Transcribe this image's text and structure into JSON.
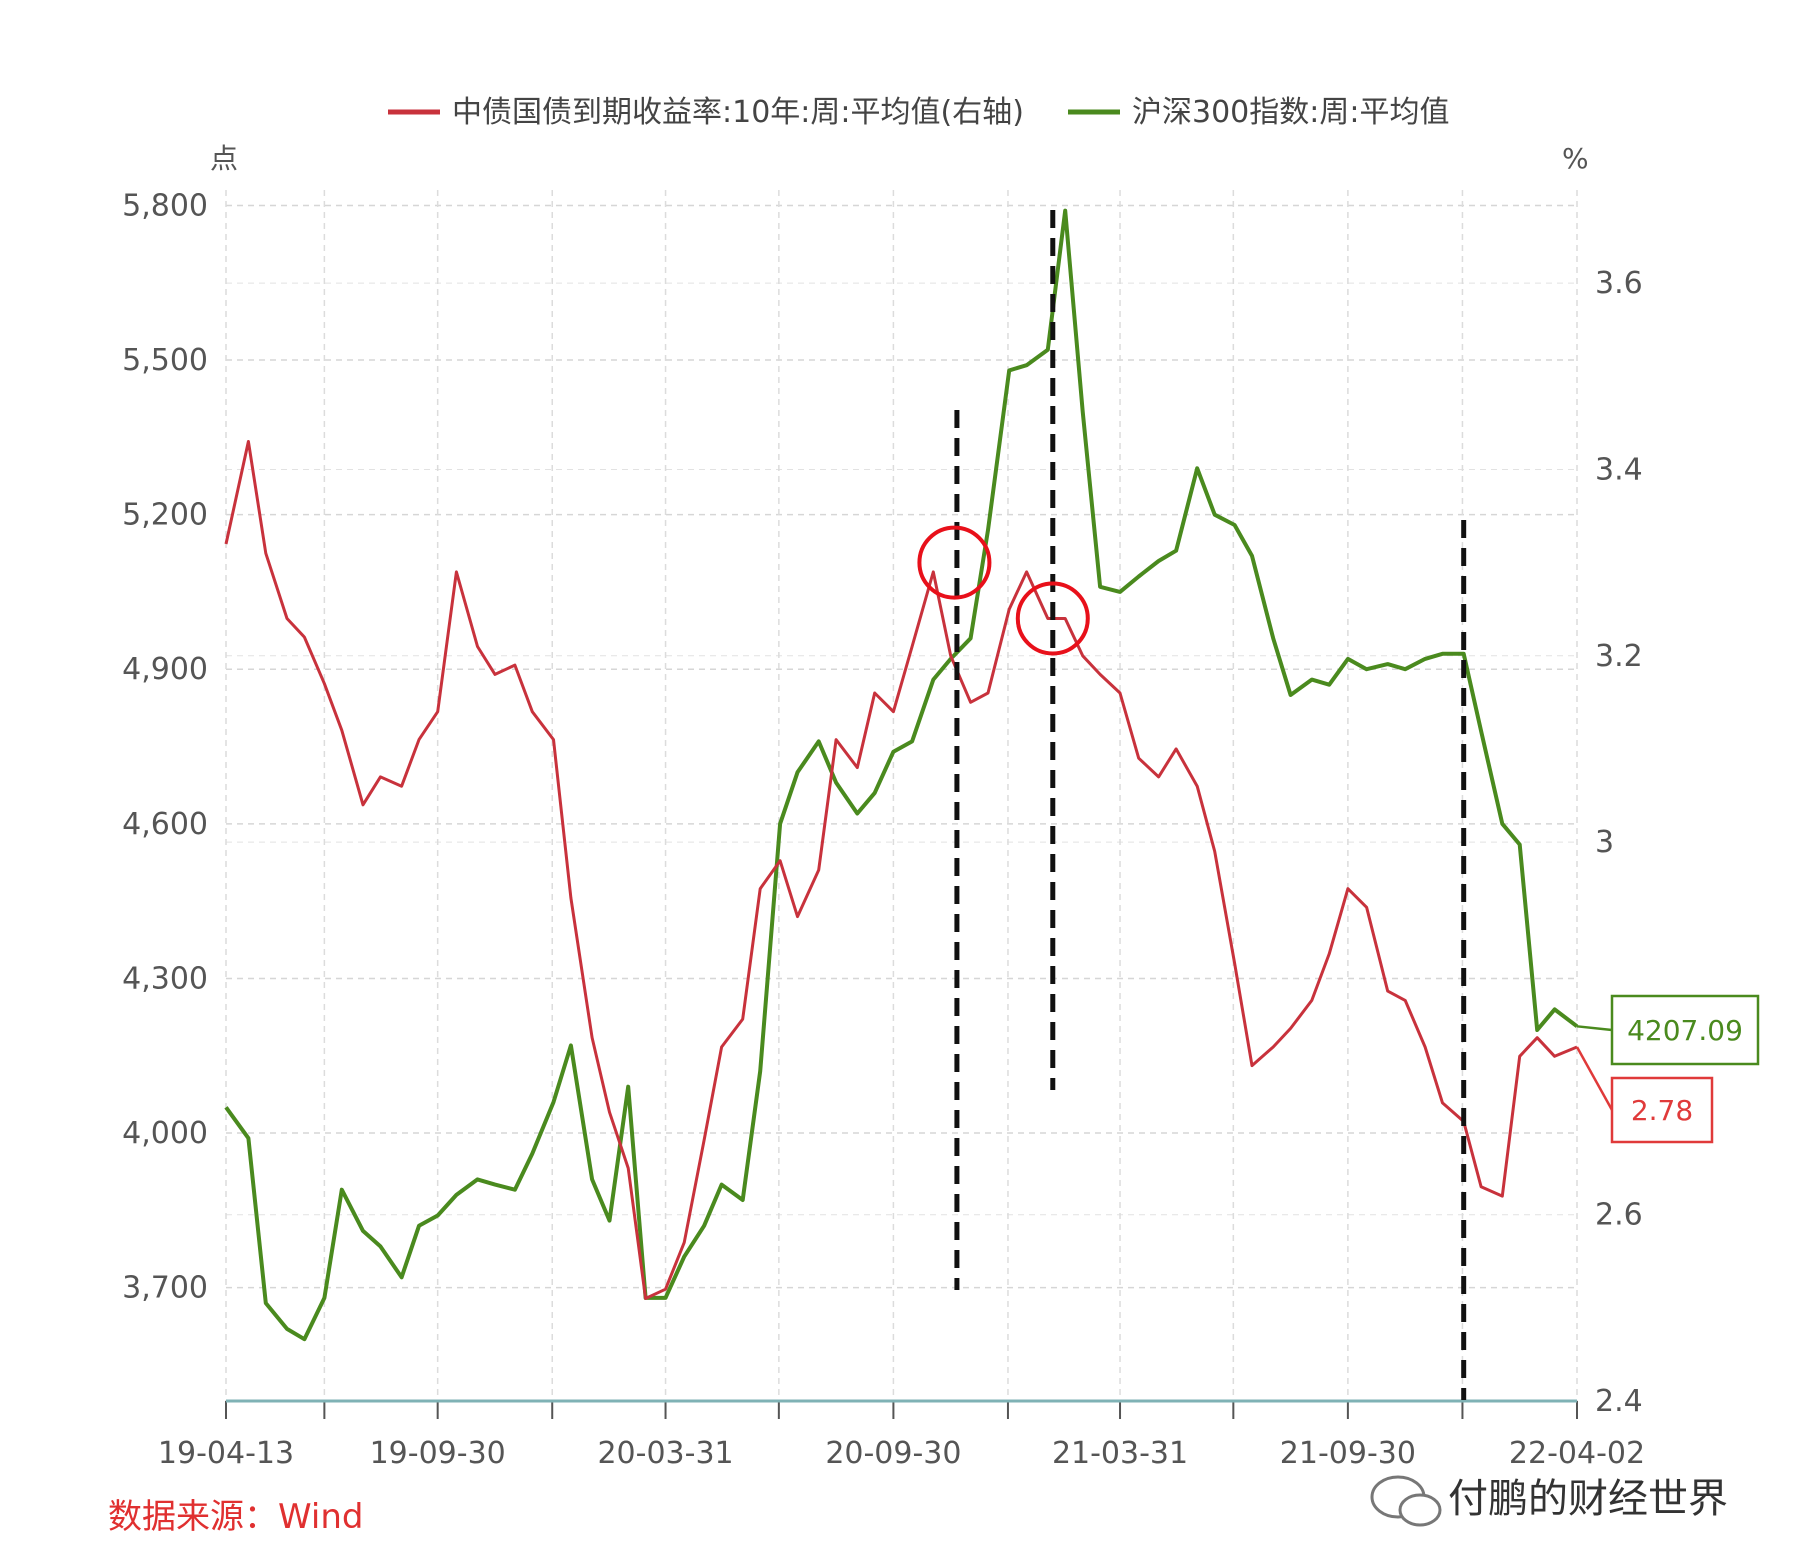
{
  "chart_data": {
    "type": "line",
    "title": "",
    "legend": {
      "placement": "top",
      "entries": [
        {
          "name": "中债国债到期收益率:10年:周:平均值(右轴)",
          "color": "#c8323c",
          "axis": "right"
        },
        {
          "name": "沪深300指数:周:平均值",
          "color": "#4a8a1e",
          "axis": "left"
        }
      ]
    },
    "y_left": {
      "unit": "点",
      "ticks": [
        "5,800",
        "5,500",
        "5,200",
        "4,900",
        "4,600",
        "4,300",
        "4,000",
        "3,700"
      ],
      "tick_values": [
        5800,
        5500,
        5200,
        4900,
        4600,
        4300,
        4000,
        3700
      ],
      "range": [
        3480,
        5830
      ]
    },
    "y_right": {
      "unit": "%",
      "ticks": [
        "3.6",
        "3.4",
        "3.2",
        "3",
        "2.6",
        "2.4"
      ],
      "tick_values": [
        3.6,
        3.4,
        3.2,
        3.0,
        2.6,
        2.4
      ],
      "range": [
        2.4,
        3.7
      ]
    },
    "x_axis": {
      "ticks": [
        "19-04-13",
        "19-09-30",
        "20-03-31",
        "20-09-30",
        "21-03-31",
        "21-09-30",
        "22-04-02"
      ],
      "range": [
        "2019-04-13",
        "2022-04-02"
      ]
    },
    "grid": true,
    "series": [
      {
        "name": "沪深300指数:周:平均值",
        "axis": "left",
        "color": "#4a8a1e",
        "x": [
          "2019-04-13",
          "2019-05-01",
          "2019-05-15",
          "2019-06-01",
          "2019-06-15",
          "2019-07-01",
          "2019-07-15",
          "2019-08-01",
          "2019-08-15",
          "2019-09-01",
          "2019-09-15",
          "2019-09-30",
          "2019-10-15",
          "2019-11-01",
          "2019-11-15",
          "2019-12-01",
          "2019-12-15",
          "2020-01-01",
          "2020-01-15",
          "2020-02-01",
          "2020-02-15",
          "2020-03-01",
          "2020-03-15",
          "2020-03-31",
          "2020-04-15",
          "2020-05-01",
          "2020-05-15",
          "2020-06-01",
          "2020-06-15",
          "2020-07-01",
          "2020-07-15",
          "2020-08-01",
          "2020-08-15",
          "2020-09-01",
          "2020-09-15",
          "2020-09-30",
          "2020-10-15",
          "2020-11-01",
          "2020-11-15",
          "2020-12-01",
          "2020-12-15",
          "2021-01-01",
          "2021-01-15",
          "2021-02-01",
          "2021-02-15",
          "2021-03-01",
          "2021-03-15",
          "2021-03-31",
          "2021-04-15",
          "2021-05-01",
          "2021-05-15",
          "2021-06-01",
          "2021-06-15",
          "2021-07-01",
          "2021-07-15",
          "2021-08-01",
          "2021-08-15",
          "2021-09-01",
          "2021-09-15",
          "2021-09-30",
          "2021-10-15",
          "2021-11-01",
          "2021-11-15",
          "2021-12-01",
          "2021-12-15",
          "2022-01-01",
          "2022-01-15",
          "2022-02-01",
          "2022-02-15",
          "2022-03-01",
          "2022-03-15",
          "2022-04-02"
        ],
        "values": [
          4050,
          3990,
          3670,
          3620,
          3600,
          3680,
          3890,
          3810,
          3780,
          3720,
          3820,
          3840,
          3880,
          3910,
          3900,
          3890,
          3960,
          4060,
          4170,
          3910,
          3830,
          4090,
          3680,
          3680,
          3760,
          3820,
          3900,
          3870,
          4120,
          4600,
          4700,
          4760,
          4680,
          4620,
          4660,
          4740,
          4760,
          4880,
          4920,
          4960,
          5170,
          5480,
          5490,
          5520,
          5790,
          5400,
          5060,
          5050,
          5080,
          5110,
          5130,
          5290,
          5200,
          5180,
          5120,
          4960,
          4850,
          4880,
          4870,
          4920,
          4900,
          4910,
          4900,
          4920,
          4930,
          4930,
          4780,
          4600,
          4560,
          4200,
          4240,
          4207.09
        ]
      },
      {
        "name": "中债国债到期收益率:10年:周:平均值(右轴)",
        "axis": "right",
        "color": "#c8323c",
        "x": [
          "2019-04-13",
          "2019-05-01",
          "2019-05-15",
          "2019-06-01",
          "2019-06-15",
          "2019-07-01",
          "2019-07-15",
          "2019-08-01",
          "2019-08-15",
          "2019-09-01",
          "2019-09-15",
          "2019-09-30",
          "2019-10-15",
          "2019-11-01",
          "2019-11-15",
          "2019-12-01",
          "2019-12-15",
          "2020-01-01",
          "2020-01-15",
          "2020-02-01",
          "2020-02-15",
          "2020-03-01",
          "2020-03-15",
          "2020-03-31",
          "2020-04-15",
          "2020-05-01",
          "2020-05-15",
          "2020-06-01",
          "2020-06-15",
          "2020-07-01",
          "2020-07-15",
          "2020-08-01",
          "2020-08-15",
          "2020-09-01",
          "2020-09-15",
          "2020-09-30",
          "2020-10-15",
          "2020-11-01",
          "2020-11-15",
          "2020-12-01",
          "2020-12-15",
          "2021-01-01",
          "2021-01-15",
          "2021-02-01",
          "2021-02-15",
          "2021-03-01",
          "2021-03-15",
          "2021-03-31",
          "2021-04-15",
          "2021-05-01",
          "2021-05-15",
          "2021-06-01",
          "2021-06-15",
          "2021-07-01",
          "2021-07-15",
          "2021-08-01",
          "2021-08-15",
          "2021-09-01",
          "2021-09-15",
          "2021-09-30",
          "2021-10-15",
          "2021-11-01",
          "2021-11-15",
          "2021-12-01",
          "2021-12-15",
          "2022-01-01",
          "2022-01-15",
          "2022-02-01",
          "2022-02-15",
          "2022-03-01",
          "2022-03-15",
          "2022-04-02"
        ],
        "values": [
          3.32,
          3.43,
          3.31,
          3.24,
          3.22,
          3.17,
          3.12,
          3.04,
          3.07,
          3.06,
          3.11,
          3.14,
          3.29,
          3.21,
          3.18,
          3.19,
          3.14,
          3.11,
          2.94,
          2.79,
          2.71,
          2.65,
          2.51,
          2.52,
          2.57,
          2.68,
          2.78,
          2.81,
          2.95,
          2.98,
          2.92,
          2.97,
          3.11,
          3.08,
          3.16,
          3.14,
          3.21,
          3.29,
          3.2,
          3.15,
          3.16,
          3.25,
          3.29,
          3.24,
          3.24,
          3.2,
          3.18,
          3.16,
          3.09,
          3.07,
          3.1,
          3.06,
          2.99,
          2.87,
          2.76,
          2.78,
          2.8,
          2.83,
          2.88,
          2.95,
          2.93,
          2.84,
          2.83,
          2.78,
          2.72,
          2.7,
          2.63,
          2.62,
          2.77,
          2.79,
          2.77,
          2.78
        ]
      }
    ],
    "annotations": {
      "dashed_lines": [
        "2020-11-20",
        "2021-02-05",
        "2022-01-01"
      ],
      "circles": [
        {
          "x": "2020-11-18",
          "y_right": 3.3
        },
        {
          "x": "2021-02-05",
          "y_right": 3.24
        }
      ],
      "callouts": [
        {
          "series": "沪深300指数:周:平均值",
          "text": "4207.09",
          "color": "#4a8a1e"
        },
        {
          "series": "中债国债到期收益率:10年:周:平均值(右轴)",
          "text": "2.78",
          "color": "#e03a3a"
        }
      ]
    }
  },
  "footer": {
    "source": "数据来源：Wind",
    "watermark": "付鹏的财经世界"
  }
}
